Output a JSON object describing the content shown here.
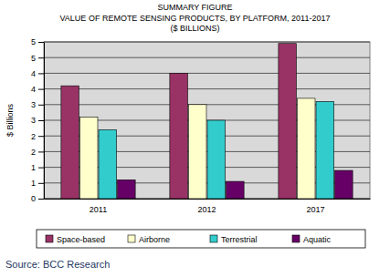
{
  "chart_data": {
    "type": "bar",
    "title": [
      "SUMMARY FIGURE",
      "VALUE OF REMOTE SENSING PRODUCTS, BY PLATFORM, 2011-2017",
      "($ BILLIONS)"
    ],
    "y_label": "$ Billions",
    "source": "Source: BCC Research",
    "categories": [
      "2011",
      "2012",
      "2017"
    ],
    "series": [
      {
        "name": "Space-based",
        "color": "#993366",
        "values": [
          3.6,
          4.0,
          4.95
        ]
      },
      {
        "name": "Airborne",
        "color": "#ffffcc",
        "values": [
          2.6,
          3.0,
          3.2
        ]
      },
      {
        "name": "Terrestrial",
        "color": "#33cccc",
        "values": [
          2.2,
          2.5,
          3.1
        ]
      },
      {
        "name": "Aquatic",
        "color": "#660066",
        "values": [
          0.6,
          0.55,
          0.9
        ]
      }
    ],
    "ylim": [
      0,
      5
    ],
    "yticks": [
      0,
      {
        "value": 0.5,
        "label": "1"
      },
      1,
      {
        "value": 1.5,
        "label": "2"
      },
      2,
      {
        "value": 2.5,
        "label": "3"
      },
      3,
      {
        "value": 3.5,
        "label": "4"
      },
      4,
      {
        "value": 4.5,
        "label": "5"
      },
      5
    ],
    "grid": true,
    "legend": "bottom"
  }
}
